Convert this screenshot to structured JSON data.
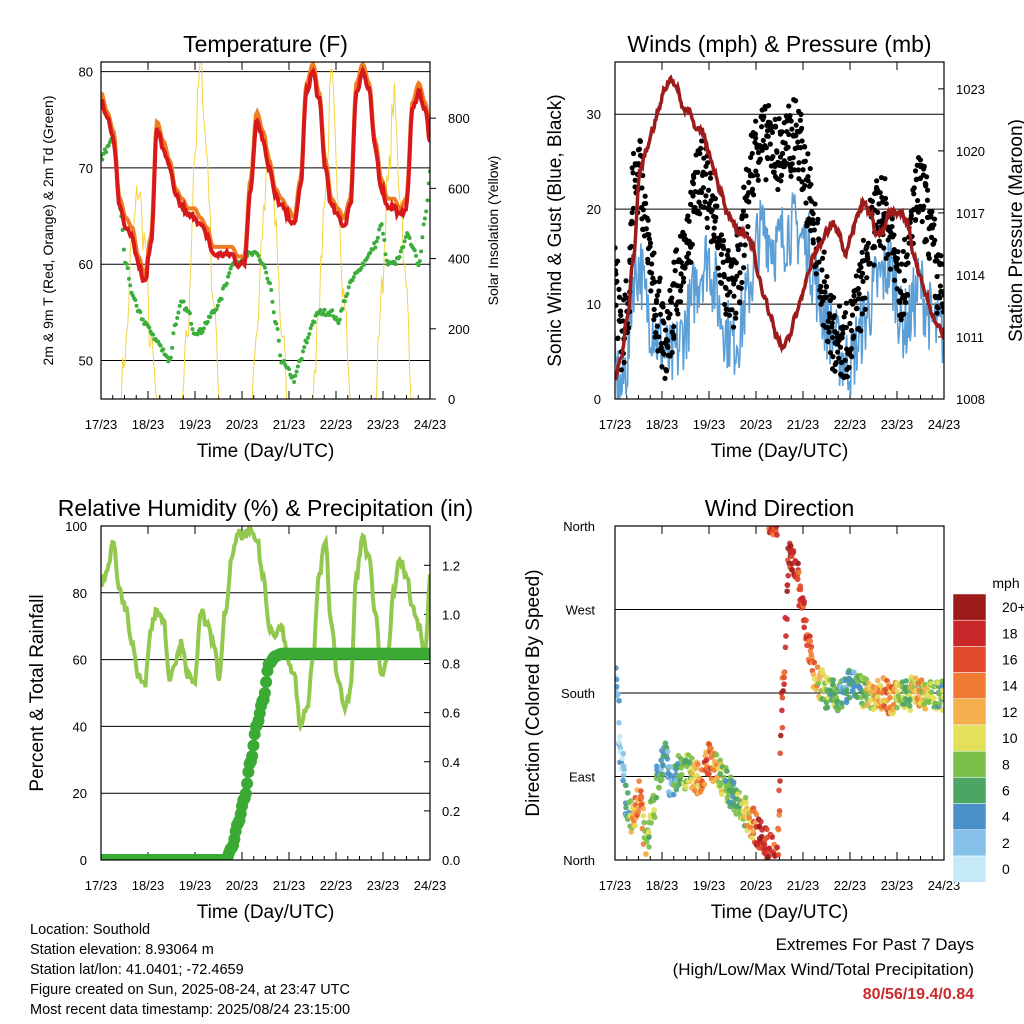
{
  "chart_data": [
    {
      "type": "line",
      "title": "Temperature (F)",
      "xlabel": "Time (Day/UTC)",
      "ylabel": "2m & 9m T (Red, Orange) & 2m Td (Green)",
      "y2label": "Solar Insolation (Yellow)",
      "x_ticks": [
        "17/23",
        "18/23",
        "19/23",
        "20/23",
        "21/23",
        "22/23",
        "23/23",
        "24/23"
      ],
      "ylim": [
        46,
        81
      ],
      "y_ticks": [
        50,
        60,
        70,
        80
      ],
      "y2lim": [
        0,
        960
      ],
      "y2_ticks": [
        0,
        200,
        400,
        600,
        800
      ],
      "grid": "horizontal",
      "colors": {
        "t2m": "#d7191c",
        "t9m": "#f07d22",
        "td": "#3cae3c",
        "solar": "#f5d442"
      },
      "series": [
        {
          "name": "2m T",
          "key": "t2m",
          "values": [
            77,
            75,
            73,
            66,
            64,
            63,
            60,
            58,
            62,
            74,
            72,
            70,
            67,
            66,
            65,
            65,
            64,
            63,
            61,
            61,
            61,
            61,
            60,
            60,
            68,
            75,
            73,
            70,
            67,
            66,
            65,
            64,
            68,
            78,
            80,
            77,
            70,
            66,
            65,
            64,
            66,
            78,
            80,
            78,
            72,
            68,
            66,
            66,
            65,
            66,
            76,
            78,
            76,
            72
          ]
        },
        {
          "name": "2m Td",
          "key": "td",
          "values": [
            71,
            72,
            73,
            66,
            60,
            57,
            55,
            54,
            53,
            52,
            51,
            50,
            54,
            56,
            55,
            53,
            53,
            54,
            55,
            56,
            58,
            60,
            60,
            61,
            61,
            61,
            60,
            58,
            54,
            50,
            49,
            48,
            50,
            52,
            54,
            55,
            55,
            55,
            54,
            56,
            58,
            59,
            60,
            61,
            62,
            64,
            60,
            60,
            61,
            63,
            62,
            60,
            65,
            70
          ]
        },
        {
          "name": "Solar",
          "key": "solar",
          "values": [
            0,
            0,
            0,
            0,
            150,
            450,
            600,
            450,
            150,
            0,
            0,
            0,
            0,
            0,
            200,
            700,
            950,
            700,
            300,
            0,
            0,
            0,
            0,
            0,
            0,
            200,
            500,
            700,
            500,
            200,
            0,
            0,
            0,
            0,
            0,
            300,
            600,
            900,
            600,
            300,
            0,
            0,
            0,
            0,
            0,
            300,
            600,
            850,
            600,
            300,
            0,
            0,
            0,
            0
          ]
        }
      ]
    },
    {
      "type": "scatter",
      "title": "Winds (mph) & Pressure (mb)",
      "xlabel": "Time (Day/UTC)",
      "ylabel": "Sonic Wind & Gust (Blue, Black)",
      "y2label": "Station Pressure (Maroon)",
      "x_ticks": [
        "17/23",
        "18/23",
        "19/23",
        "20/23",
        "21/23",
        "22/23",
        "23/23",
        "24/23"
      ],
      "ylim": [
        0,
        35.5
      ],
      "y_ticks": [
        0,
        10,
        20,
        30
      ],
      "y2lim": [
        1008,
        1024.3
      ],
      "y2_ticks": [
        1008,
        1011,
        1014,
        1017,
        1020,
        1023
      ],
      "grid": "horizontal",
      "colors": {
        "wind": "#5b9fd6",
        "gust": "#000000",
        "pressure": "#9c1c1c"
      },
      "series": [
        {
          "name": "Wind",
          "key": "wind",
          "values": [
            3,
            1,
            4,
            13,
            14,
            10,
            8,
            6,
            5,
            4,
            5,
            7,
            9,
            12,
            14,
            15,
            12,
            9,
            7,
            6,
            7,
            10,
            13,
            17,
            18,
            17,
            16,
            17,
            18,
            18,
            17,
            16,
            13,
            10,
            8,
            7,
            5,
            4,
            4,
            6,
            8,
            10,
            12,
            13,
            14,
            12,
            8,
            8,
            10,
            12,
            10,
            8,
            7,
            7
          ]
        },
        {
          "name": "Gust",
          "key": "gust",
          "values": [
            15,
            5,
            10,
            22,
            24,
            18,
            12,
            9,
            6,
            8,
            12,
            16,
            18,
            22,
            24,
            22,
            18,
            15,
            12,
            11,
            14,
            20,
            25,
            27,
            27,
            27,
            26,
            26,
            27,
            28,
            26,
            22,
            17,
            14,
            10,
            7,
            6,
            6,
            7,
            10,
            13,
            17,
            19,
            20,
            18,
            16,
            12,
            14,
            20,
            22,
            20,
            16,
            12,
            10
          ]
        },
        {
          "name": "Pressure",
          "key": "pressure",
          "values": [
            1009,
            1010,
            1012,
            1015,
            1019,
            1020,
            1021,
            1022,
            1023,
            1023.5,
            1023,
            1022,
            1022,
            1021,
            1021,
            1020,
            1019,
            1018,
            1017,
            1016.5,
            1016,
            1016,
            1015.5,
            1014,
            1013,
            1012,
            1011,
            1010.5,
            1011,
            1012,
            1013,
            1014,
            1015,
            1015.5,
            1016,
            1016.5,
            1016,
            1015,
            1016,
            1017,
            1017.5,
            1017,
            1016,
            1016,
            1017,
            1017,
            1017,
            1016.5,
            1015,
            1014,
            1013,
            1012,
            1011.5,
            1011
          ]
        }
      ]
    },
    {
      "type": "line",
      "title": "Relative Humidity (%) & Precipitation (in)",
      "xlabel": "Time (Day/UTC)",
      "ylabel": "Percent & Total Rainfall",
      "x_ticks": [
        "17/23",
        "18/23",
        "19/23",
        "20/23",
        "21/23",
        "22/23",
        "23/23",
        "24/23"
      ],
      "ylim": [
        0,
        100
      ],
      "y_ticks": [
        0,
        20,
        40,
        60,
        80,
        100
      ],
      "y2lim": [
        0,
        1.36
      ],
      "y2_ticks": [
        0.0,
        0.2,
        0.4,
        0.6,
        0.8,
        1.0,
        1.2
      ],
      "grid": "horizontal",
      "colors": {
        "rh": "#92c84d",
        "precip": "#3aaa35"
      },
      "series": [
        {
          "name": "RH",
          "key": "rh",
          "values": [
            83,
            87,
            95,
            80,
            75,
            65,
            55,
            52,
            70,
            75,
            72,
            55,
            60,
            65,
            55,
            52,
            75,
            70,
            65,
            55,
            75,
            90,
            98,
            97,
            98,
            96,
            85,
            70,
            68,
            70,
            60,
            55,
            40,
            45,
            60,
            85,
            95,
            70,
            55,
            45,
            50,
            85,
            97,
            90,
            75,
            55,
            62,
            80,
            90,
            85,
            75,
            70,
            62,
            88
          ]
        },
        {
          "name": "Precipitation",
          "key": "precip",
          "values": [
            0,
            0,
            0,
            0,
            0,
            0,
            0,
            0,
            0,
            0,
            0,
            0,
            0,
            0,
            0,
            0,
            0,
            0,
            0,
            0,
            0,
            0.05,
            0.15,
            0.25,
            0.4,
            0.55,
            0.65,
            0.8,
            0.83,
            0.84,
            0.84,
            0.84,
            0.84,
            0.84,
            0.84,
            0.84,
            0.84,
            0.84,
            0.84,
            0.84,
            0.84,
            0.84,
            0.84,
            0.84,
            0.84,
            0.84,
            0.84,
            0.84,
            0.84,
            0.84,
            0.84,
            0.84,
            0.84,
            0.84
          ]
        }
      ]
    },
    {
      "type": "scatter",
      "title": "Wind Direction",
      "xlabel": "Time (Day/UTC)",
      "ylabel": "Direction (Colored By Speed)",
      "x_ticks": [
        "17/23",
        "18/23",
        "19/23",
        "20/23",
        "21/23",
        "22/23",
        "23/23",
        "24/23"
      ],
      "y_ticks": [
        "North",
        "East",
        "South",
        "West",
        "North"
      ],
      "ylim": [
        0,
        360
      ],
      "grid": "horizontal",
      "colorbar": {
        "title": "mph",
        "labels": [
          "0",
          "2",
          "4",
          "6",
          "8",
          "10",
          "12",
          "14",
          "16",
          "18",
          "20+"
        ],
        "colors": [
          "#c6e9f7",
          "#85c1e9",
          "#4a90c9",
          "#4ca563",
          "#7bbf4a",
          "#e3e05a",
          "#f4b04c",
          "#f07b33",
          "#e04a2b",
          "#c9272a",
          "#9d1b1b"
        ]
      },
      "series": [
        {
          "name": "Direction",
          "key": "dir",
          "values": [
            200,
            110,
            60,
            40,
            70,
            20,
            50,
            90,
            110,
            85,
            95,
            90,
            100,
            90,
            85,
            110,
            100,
            90,
            80,
            70,
            60,
            50,
            40,
            30,
            20,
            10,
            5,
            180,
            330,
            320,
            280,
            230,
            200,
            190,
            180,
            180,
            175,
            180,
            190,
            185,
            180,
            175,
            180,
            180,
            175,
            175,
            180,
            178,
            180,
            180,
            176,
            180,
            175,
            178
          ]
        }
      ]
    }
  ],
  "info": {
    "location": "Location: Southold",
    "elevation": "Station elevation: 8.93064 m",
    "latlon": "Station lat/lon: 41.0401; -72.4659",
    "created": "Figure created on Sun, 2025-08-24, at 23:47 UTC",
    "timestamp": "Most recent data timestamp: 2025/08/24 23:15:00"
  },
  "extremes": {
    "line1": "Extremes For Past 7 Days",
    "line2": "(High/Low/Max Wind/Total Precipitation)",
    "values": "80/56/19.4/0.84"
  }
}
